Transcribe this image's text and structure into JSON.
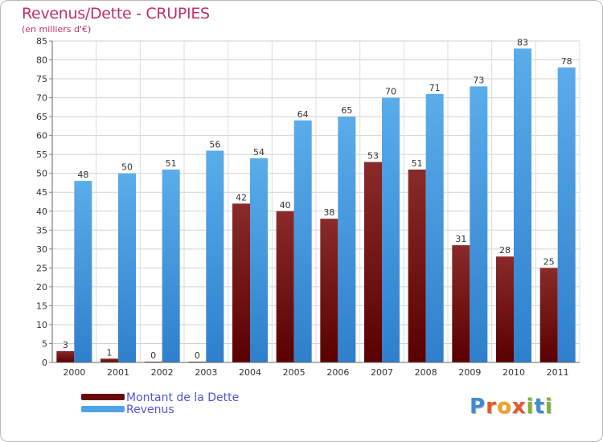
{
  "chart_data": {
    "type": "bar",
    "title": "Revenus/Dette - CRUPIES",
    "subtitle": "(en milliers d'€)",
    "categories": [
      "2000",
      "2001",
      "2002",
      "2003",
      "2004",
      "2005",
      "2006",
      "2007",
      "2008",
      "2009",
      "2010",
      "2011"
    ],
    "series": [
      {
        "name": "Montant de la Dette",
        "color": "#7a1414",
        "values": [
          3,
          1,
          0,
          0,
          42,
          40,
          38,
          53,
          51,
          31,
          28,
          25
        ]
      },
      {
        "name": "Revenus",
        "color": "#4fa3e6",
        "values": [
          48,
          50,
          51,
          56,
          54,
          64,
          65,
          70,
          71,
          73,
          83,
          78
        ]
      }
    ],
    "ylim": [
      0,
      85
    ],
    "yticks": [
      0,
      5,
      10,
      15,
      20,
      25,
      30,
      35,
      40,
      45,
      50,
      55,
      60,
      65,
      70,
      75,
      80,
      85
    ],
    "grid": true,
    "legend_position": "bottom-left"
  },
  "logo": {
    "text": "Proxiti",
    "letters": [
      "P",
      "r",
      "o",
      "x",
      "i",
      "t",
      "i"
    ]
  }
}
